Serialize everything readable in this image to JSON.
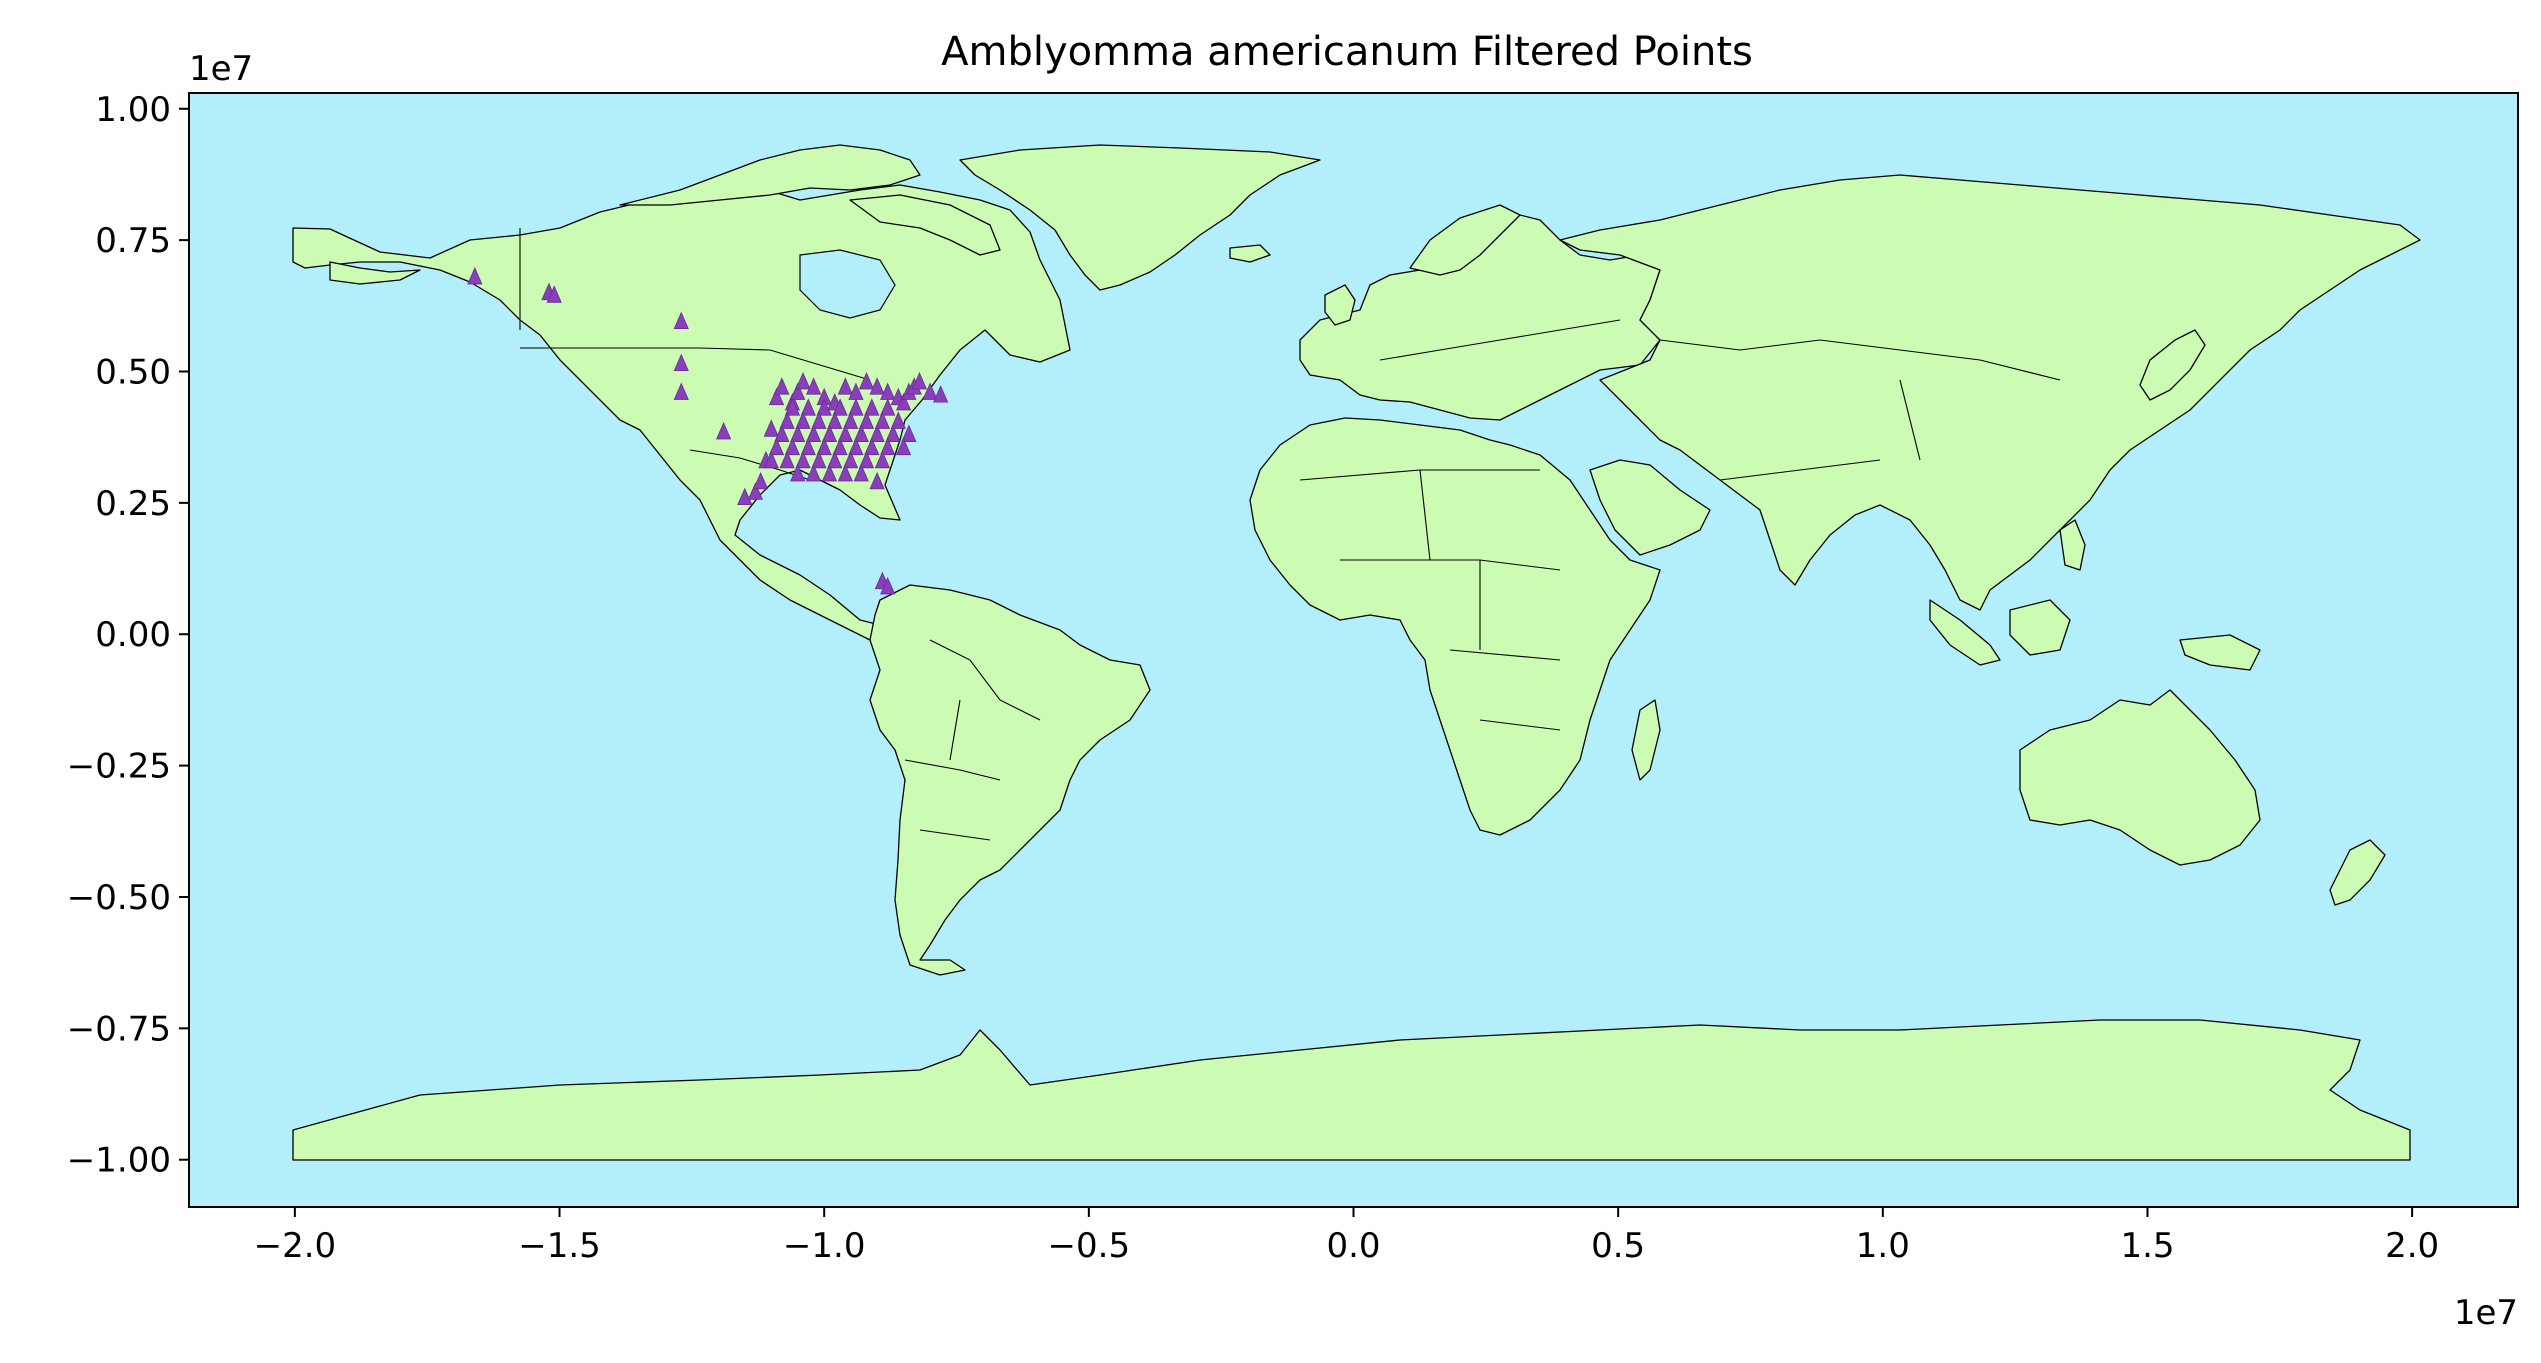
{
  "chart_data": {
    "type": "scatter",
    "title": "Amblyomma americanum Filtered Points",
    "xlabel": "",
    "ylabel": "",
    "x_offset_label": "1e7",
    "y_offset_label": "1e7",
    "xlim": [
      -2.2,
      2.2
    ],
    "ylim": [
      -1.09,
      1.03
    ],
    "x_ticks": [
      -2.0,
      -1.5,
      -1.0,
      -0.5,
      0.0,
      0.5,
      1.0,
      1.5,
      2.0
    ],
    "x_tick_labels": [
      "−2.0",
      "−1.5",
      "−1.0",
      "−0.5",
      "0.0",
      "0.5",
      "1.0",
      "1.5",
      "2.0"
    ],
    "y_ticks": [
      1.0,
      0.75,
      0.5,
      0.25,
      0.0,
      -0.25,
      -0.5,
      -0.75,
      -1.0
    ],
    "y_tick_labels": [
      "1.00",
      "0.75",
      "0.50",
      "0.25",
      "0.00",
      "−0.25",
      "−0.50",
      "−0.75",
      "−1.00"
    ],
    "grid": false,
    "legend": "none",
    "marker": "triangle",
    "colors": {
      "ocean": "#b3eefb",
      "land": "#ccfcb4",
      "points": "#8a3fba",
      "outline": "#000000"
    },
    "series": [
      {
        "x": [
          -1.66,
          -1.52,
          -1.51,
          -1.27,
          -1.27,
          -1.27,
          -1.19,
          -1.15,
          -1.13,
          -1.12,
          -1.11,
          -1.1,
          -1.09,
          -1.08,
          -1.06,
          -1.05,
          -1.04,
          -1.02,
          -1.0,
          -0.98,
          -0.96,
          -0.94,
          -0.92,
          -0.9,
          -0.88,
          -0.86,
          -0.85,
          -0.84,
          -0.83,
          -0.82,
          -0.8,
          -0.78,
          -0.89,
          -0.88,
          -1.06,
          -1.03,
          -1.0,
          -0.97,
          -0.94,
          -0.91,
          -0.88,
          -1.07,
          -1.04,
          -1.01,
          -0.98,
          -0.95,
          -0.92,
          -0.89,
          -0.86,
          -1.08,
          -1.05,
          -1.02,
          -0.99,
          -0.96,
          -0.93,
          -0.9,
          -0.87,
          -0.84,
          -1.09,
          -1.06,
          -1.03,
          -1.0,
          -0.97,
          -0.94,
          -0.91,
          -0.88,
          -0.85,
          -1.1,
          -1.07,
          -1.04,
          -1.01,
          -0.98,
          -0.95,
          -0.92,
          -0.89,
          -1.05,
          -1.02,
          -0.99,
          -0.96,
          -0.93,
          -0.9
        ],
        "y": [
          0.68,
          0.65,
          0.645,
          0.595,
          0.515,
          0.46,
          0.385,
          0.26,
          0.27,
          0.29,
          0.33,
          0.39,
          0.45,
          0.47,
          0.44,
          0.46,
          0.48,
          0.47,
          0.45,
          0.44,
          0.47,
          0.46,
          0.48,
          0.47,
          0.46,
          0.45,
          0.44,
          0.46,
          0.47,
          0.48,
          0.46,
          0.455,
          0.1,
          0.09,
          0.43,
          0.43,
          0.43,
          0.43,
          0.43,
          0.43,
          0.43,
          0.405,
          0.405,
          0.405,
          0.405,
          0.405,
          0.405,
          0.405,
          0.405,
          0.38,
          0.38,
          0.38,
          0.38,
          0.38,
          0.38,
          0.38,
          0.38,
          0.38,
          0.355,
          0.355,
          0.355,
          0.355,
          0.355,
          0.355,
          0.355,
          0.355,
          0.355,
          0.33,
          0.33,
          0.33,
          0.33,
          0.33,
          0.33,
          0.33,
          0.33,
          0.305,
          0.305,
          0.305,
          0.305,
          0.305,
          0.29
        ]
      }
    ]
  }
}
